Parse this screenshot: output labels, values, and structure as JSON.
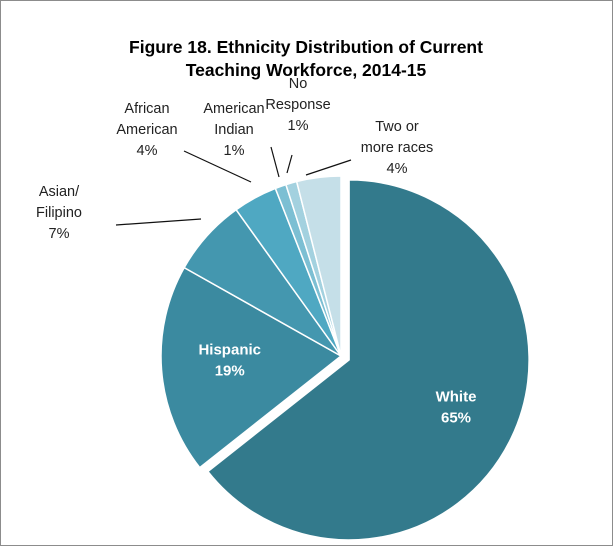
{
  "chart_data": {
    "type": "pie",
    "title_lines": [
      "Figure 18. Ethnicity Distribution of Current",
      "Teaching Workforce, 2014-15"
    ],
    "slices": [
      {
        "name": "White",
        "value": 65,
        "label_lines": [
          "White"
        ],
        "pct": "65%",
        "color": "#337a8c",
        "exploded": true,
        "label_inside": true
      },
      {
        "name": "Hispanic",
        "value": 19,
        "label_lines": [
          "Hispanic"
        ],
        "pct": "19%",
        "color": "#3b8aa0",
        "label_inside": true
      },
      {
        "name": "Asian/ Filipino",
        "value": 7,
        "label_lines": [
          "Asian/",
          "Filipino"
        ],
        "pct": "7%",
        "color": "#4497af",
        "label_inside": false
      },
      {
        "name": "African American",
        "value": 4,
        "label_lines": [
          "African",
          "American"
        ],
        "pct": "4%",
        "color": "#4fa8c2",
        "label_inside": false
      },
      {
        "name": "American Indian",
        "value": 1,
        "label_lines": [
          "American",
          "Indian"
        ],
        "pct": "1%",
        "color": "#7cbfd3",
        "label_inside": false
      },
      {
        "name": "No Response",
        "value": 1,
        "label_lines": [
          "No",
          "Response"
        ],
        "pct": "1%",
        "color": "#a3d1df",
        "label_inside": false
      },
      {
        "name": "Two or more races",
        "value": 4,
        "label_lines": [
          "Two or",
          "more races"
        ],
        "pct": "4%",
        "color": "#c5dfe8",
        "label_inside": false
      }
    ]
  }
}
